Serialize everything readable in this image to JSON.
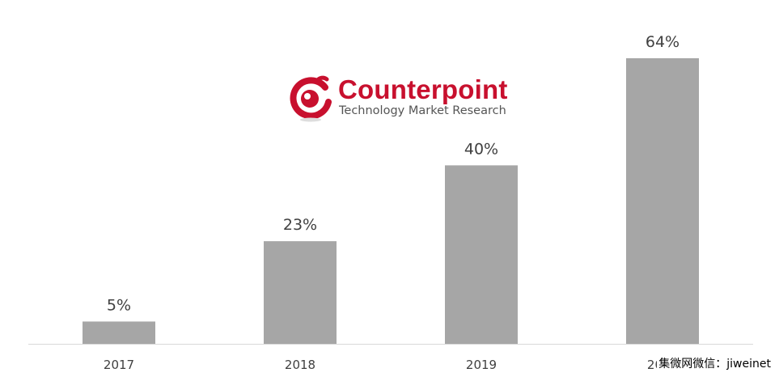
{
  "chart_data": {
    "type": "bar",
    "categories": [
      "2017",
      "2018",
      "2019",
      "2020"
    ],
    "values": [
      5,
      23,
      40,
      64
    ],
    "data_labels": [
      "5%",
      "23%",
      "40%",
      "64%"
    ],
    "ylim": [
      0,
      64
    ],
    "bar_color": "#a6a6a6",
    "axis_color": "#d9d9d9",
    "gridlines": false,
    "legend": "none"
  },
  "logo": {
    "name": "Counterpoint",
    "tagline": "Technology Market Research",
    "color": "#c8102e"
  },
  "watermark": "集微网微信：jiweinet"
}
